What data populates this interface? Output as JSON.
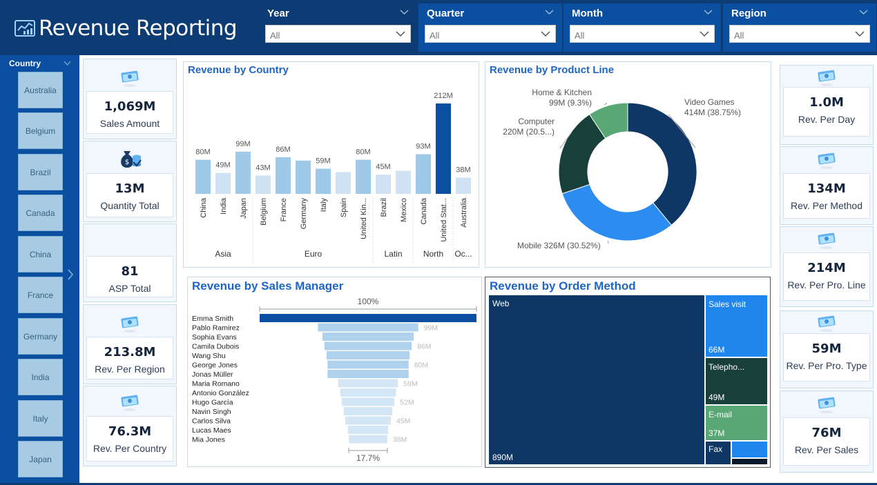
{
  "header": {
    "title": "Revenue Reporting",
    "logo_icon": "chart-report-icon"
  },
  "filters": [
    {
      "label": "Year",
      "value": "All"
    },
    {
      "label": "Quarter",
      "value": "All"
    },
    {
      "label": "Month",
      "value": "All"
    },
    {
      "label": "Region",
      "value": "All"
    }
  ],
  "country_slicer": {
    "label": "Country",
    "items": [
      "Australia",
      "Belgium",
      "Brazil",
      "Canada",
      "China",
      "France",
      "Germany",
      "India",
      "Italy",
      "Japan"
    ]
  },
  "kpis_left": [
    {
      "value": "1,069M",
      "caption": "Sales Amount",
      "icon": "money-icon"
    },
    {
      "value": "13M",
      "caption": "Quantity Total",
      "icon": "money-bag-coins-icon"
    },
    {
      "value": "81",
      "caption": "ASP Total",
      "icon": ""
    },
    {
      "value": "213.8M",
      "caption": "Rev. Per Region",
      "icon": "money-icon"
    },
    {
      "value": "76.3M",
      "caption": "Rev. Per Country",
      "icon": "money-icon"
    }
  ],
  "kpis_right": [
    {
      "value": "1.0M",
      "caption": "Rev. Per Day",
      "icon": "money-icon"
    },
    {
      "value": "134M",
      "caption": "Rev. Per Method",
      "icon": "money-icon"
    },
    {
      "value": "214M",
      "caption": "Rev. Per Pro. Line",
      "icon": "money-icon"
    },
    {
      "value": "59M",
      "caption": "Rev. Per Pro. Type",
      "icon": "money-icon"
    },
    {
      "value": "76M",
      "caption": "Rev. Per Sales",
      "icon": "money-icon"
    }
  ],
  "colors": {
    "navy": "#0d3b73",
    "blue": "#0b4fa0",
    "accent": "#1f66c4",
    "bar_light": "#9ec9e8",
    "bar_pale": "#cfe2f3",
    "bar_dark": "#0b4fa0"
  },
  "chart_data": [
    {
      "type": "bar",
      "title": "Revenue by Country",
      "categories": [
        "China",
        "India",
        "Japan",
        "Belgium",
        "France",
        "Germany",
        "Italy",
        "Spain",
        "United Kin...",
        "Brazil",
        "Mexico",
        "Canada",
        "United Stat...",
        "Australia"
      ],
      "groups": [
        {
          "name": "Asia",
          "count": 3
        },
        {
          "name": "Euro",
          "count": 6
        },
        {
          "name": "Latin",
          "count": 2
        },
        {
          "name": "North",
          "count": 2
        },
        {
          "name": "Oc...",
          "count": 1
        }
      ],
      "values": [
        80,
        49,
        99,
        43,
        86,
        78,
        59,
        51,
        80,
        45,
        54,
        93,
        212,
        38
      ],
      "data_labels": [
        "80M",
        "49M",
        "99M",
        "43M",
        "86M",
        "",
        "59M",
        "",
        "80M",
        "45M",
        "",
        "93M",
        "212M",
        "38M"
      ],
      "unit": "M",
      "ylim": [
        0,
        220
      ],
      "grid": false
    },
    {
      "type": "pie",
      "title": "Revenue by Product Line",
      "donut": true,
      "slices": [
        {
          "name": "Video Games",
          "value": 414,
          "label": "414M (38.75%)",
          "color": "#0f3766"
        },
        {
          "name": "Mobile",
          "value": 326,
          "label": "326M (30.52%)",
          "color": "#2d8cf0"
        },
        {
          "name": "Computer",
          "value": 220,
          "label": "220M (20.5...)",
          "color": "#193f3a"
        },
        {
          "name": "Home & Kitchen",
          "value": 99,
          "label": "99M (9.3%)",
          "color": "#5aa776"
        }
      ]
    },
    {
      "type": "bar",
      "subtype": "funnel",
      "title": "Revenue by Sales Manager",
      "top_label": "100%",
      "bottom_label": "17.7%",
      "categories": [
        "Emma Smith",
        "Pablo Ramirez",
        "Sophia Evans",
        "Camila Dubois",
        "Wang Shu",
        "George Jones",
        "Jonas Müller",
        "Maria Romano",
        "Antonio González",
        "Hugo García",
        "Navin Singh",
        "Carlos Silva",
        "Lucas Maes",
        "Mia Jones"
      ],
      "values": [
        214,
        99,
        90,
        86,
        82,
        80,
        80,
        59,
        55,
        52,
        48,
        45,
        40,
        38
      ],
      "data_labels": [
        "",
        "99M",
        "",
        "86M",
        "",
        "80M",
        "",
        "59M",
        "",
        "52M",
        "",
        "45M",
        "",
        "38M"
      ]
    },
    {
      "type": "treemap",
      "title": "Revenue by Order Method",
      "items": [
        {
          "name": "Web",
          "value": 890,
          "label": "890M",
          "color": "#0f3766"
        },
        {
          "name": "Sales visit",
          "value": 66,
          "label": "66M",
          "color": "#1f86ee"
        },
        {
          "name": "Telepho...",
          "value": 49,
          "label": "49M",
          "color": "#193f3a"
        },
        {
          "name": "E-mail",
          "value": 37,
          "label": "37M",
          "color": "#5aa776"
        },
        {
          "name": "Fax",
          "value": 18,
          "label": "",
          "color": "#0f3766"
        }
      ]
    }
  ]
}
